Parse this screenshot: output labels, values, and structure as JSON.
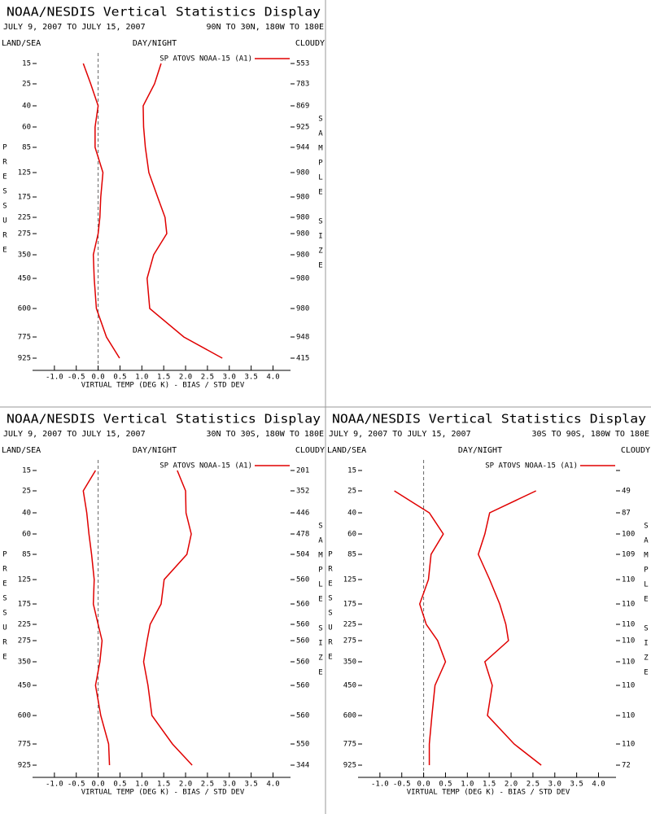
{
  "chart_data": [
    {
      "type": "line",
      "title": "NOAA/NESDIS Vertical Statistics Display",
      "period": "JULY 9, 2007 TO JULY 15, 2007",
      "region": "90N TO 30N, 180W TO 180E",
      "land_sea": "LAND/SEA",
      "day_night": "DAY/NIGHT",
      "cloud": "CLOUDY",
      "ylabel": "PRESSURE",
      "y2label": "SAMPLE SIZE",
      "xlabel": "VIRTUAL TEMP (DEG K) - BIAS / STD DEV",
      "categories": [
        "15",
        "25",
        "40",
        "60",
        "85",
        "125",
        "175",
        "225",
        "275",
        "350",
        "450",
        "600",
        "775",
        "925"
      ],
      "xlim": [
        -1.5,
        4.4
      ],
      "xticks": [
        {
          "value": -1,
          "label": "-1.0"
        },
        -0.5,
        {
          "value": 0,
          "label": "0.0"
        },
        0.5,
        {
          "value": 1,
          "label": "1.0"
        },
        1.5,
        {
          "value": 2,
          "label": "2.0"
        },
        2.5,
        {
          "value": 3,
          "label": "3.0"
        },
        3.5,
        {
          "value": 4,
          "label": "4.0"
        }
      ],
      "series": [
        {
          "name": "SP ATOVS NOAA-15 (A1)",
          "color": "#e00000",
          "bias": [
            -0.34,
            -0.17,
            0.0,
            -0.07,
            -0.07,
            0.11,
            0.06,
            0.04,
            0.0,
            -0.11,
            -0.09,
            -0.04,
            0.19,
            0.49
          ],
          "std_dev": [
            1.44,
            1.29,
            1.03,
            1.04,
            1.08,
            1.16,
            1.36,
            1.53,
            1.57,
            1.27,
            1.12,
            1.18,
            1.96,
            2.84
          ]
        }
      ],
      "sample_size": [
        553,
        783,
        869,
        925,
        944,
        980,
        980,
        980,
        980,
        980,
        980,
        980,
        948,
        415
      ]
    },
    {
      "type": "line",
      "title": "NOAA/NESDIS Vertical Statistics Display",
      "period": "JULY 9, 2007 TO JULY 15, 2007",
      "region": "30N TO 30S, 180W TO 180E",
      "land_sea": "LAND/SEA",
      "day_night": "DAY/NIGHT",
      "cloud": "CLOUDY",
      "ylabel": "PRESSURE",
      "y2label": "SAMPLE SIZE",
      "xlabel": "VIRTUAL TEMP (DEG K) - BIAS / STD DEV",
      "categories": [
        "15",
        "25",
        "40",
        "60",
        "85",
        "125",
        "175",
        "225",
        "275",
        "350",
        "450",
        "600",
        "775",
        "925"
      ],
      "xlim": [
        -1.5,
        4.4
      ],
      "xticks": [
        {
          "value": -1,
          "label": "-1.0"
        },
        -0.5,
        {
          "value": 0,
          "label": "0.0"
        },
        0.5,
        {
          "value": 1,
          "label": "1.0"
        },
        1.5,
        {
          "value": 2,
          "label": "2.0"
        },
        2.5,
        {
          "value": 3,
          "label": "3.0"
        },
        3.5,
        {
          "value": 4,
          "label": "4.0"
        }
      ],
      "series": [
        {
          "name": "SP ATOVS NOAA-15 (A1)",
          "color": "#e00000",
          "bias": [
            -0.06,
            -0.34,
            -0.26,
            -0.21,
            -0.15,
            -0.09,
            -0.11,
            0.0,
            0.09,
            0.04,
            -0.06,
            0.06,
            0.24,
            0.26
          ],
          "std_dev": [
            1.81,
            2.0,
            2.01,
            2.13,
            2.03,
            1.51,
            1.44,
            1.19,
            1.12,
            1.04,
            1.14,
            1.23,
            1.7,
            2.15
          ]
        }
      ],
      "sample_size": [
        201,
        352,
        446,
        478,
        504,
        560,
        560,
        560,
        560,
        560,
        560,
        560,
        550,
        344
      ]
    },
    {
      "type": "line",
      "title": "NOAA/NESDIS Vertical Statistics Display",
      "period": "JULY 9, 2007 TO JULY 15, 2007",
      "region": "30S TO 90S, 180W TO 180E",
      "land_sea": "LAND/SEA",
      "day_night": "DAY/NIGHT",
      "cloud": "CLOUDY",
      "ylabel": "PRESSURE",
      "y2label": "SAMPLE SIZE",
      "xlabel": "VIRTUAL TEMP (DEG K) - BIAS / STD DEV",
      "categories": [
        "15",
        "25",
        "40",
        "60",
        "85",
        "125",
        "175",
        "225",
        "275",
        "350",
        "450",
        "600",
        "775",
        "925"
      ],
      "xlim": [
        -1.5,
        4.4
      ],
      "xticks": [
        {
          "value": -1,
          "label": "-1.0"
        },
        -0.5,
        {
          "value": 0,
          "label": "0.0"
        },
        0.5,
        {
          "value": 1,
          "label": "1.0"
        },
        1.5,
        {
          "value": 2,
          "label": "2.0"
        },
        2.5,
        {
          "value": 3,
          "label": "3.0"
        },
        3.5,
        {
          "value": 4,
          "label": "4.0"
        }
      ],
      "series": [
        {
          "name": "SP ATOVS NOAA-15 (A1)",
          "color": "#e00000",
          "bias": [
            null,
            -0.67,
            0.13,
            0.45,
            0.17,
            0.11,
            -0.09,
            0.06,
            0.32,
            0.5,
            0.26,
            0.19,
            0.13,
            0.13
          ],
          "std_dev": [
            null,
            2.57,
            1.51,
            1.4,
            1.25,
            1.51,
            1.74,
            1.88,
            1.94,
            1.4,
            1.57,
            1.46,
            2.07,
            2.69
          ]
        }
      ],
      "sample_size": [
        null,
        49,
        87,
        100,
        109,
        110,
        110,
        110,
        110,
        110,
        110,
        110,
        110,
        72
      ]
    }
  ]
}
